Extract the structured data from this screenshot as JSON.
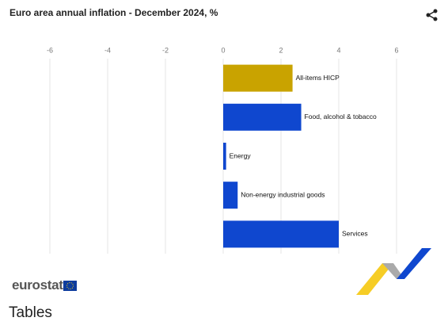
{
  "chart_data": {
    "type": "bar",
    "orientation": "horizontal",
    "title": "Euro area annual inflation - December 2024, %",
    "categories": [
      "All-items HICP",
      "Food, alcohol & tobacco",
      "Energy",
      "Non-energy industrial goods",
      "Services"
    ],
    "values": [
      2.4,
      2.7,
      0.1,
      0.5,
      4.0
    ],
    "colors": [
      "#c9a300",
      "#0f47cf",
      "#0f47cf",
      "#0f47cf",
      "#0f47cf"
    ],
    "xlim": [
      -6,
      6
    ],
    "xticks": [
      -6,
      -4,
      -2,
      0,
      2,
      4,
      6
    ],
    "grid": true
  },
  "logo": "eurostat",
  "section_heading": "Tables"
}
